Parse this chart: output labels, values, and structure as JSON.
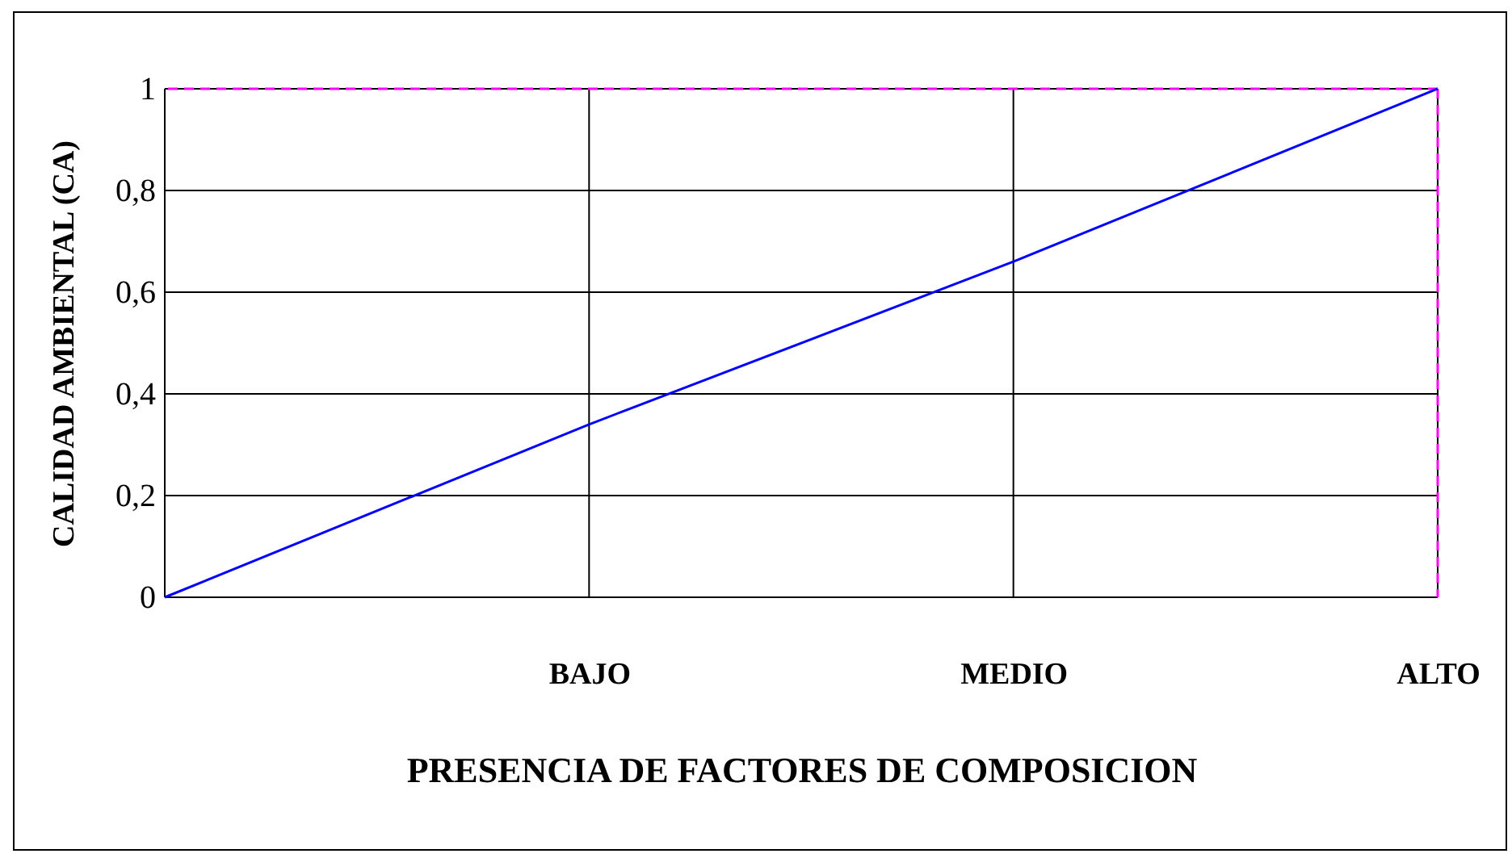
{
  "chart_data": {
    "type": "line",
    "xlabel": "PRESENCIA DE FACTORES DE COMPOSICION",
    "ylabel": "CALIDAD AMBIENTAL (CA)",
    "categories": [
      null,
      "BAJO",
      "MEDIO",
      "ALTO"
    ],
    "series": [
      {
        "color": "#0000ff",
        "values": [
          0,
          0.34,
          0.66,
          1
        ]
      }
    ],
    "ylim": [
      0,
      1
    ],
    "yticks": [
      0,
      {
        "value": 0.2,
        "label": "0,2"
      },
      {
        "value": 0.4,
        "label": "0,4"
      },
      {
        "value": 0.6,
        "label": "0,6"
      },
      {
        "value": 0.8,
        "label": "0,8"
      },
      1
    ],
    "grid": true,
    "ref_lines": [
      {
        "axis": "y",
        "value": 1,
        "color": "#ff00ff",
        "line_style": "dashed"
      },
      {
        "axis": "x",
        "value": "ALTO",
        "color": "#ff00ff",
        "line_style": "dashed"
      }
    ],
    "marker": "none",
    "line_style": "solid"
  }
}
